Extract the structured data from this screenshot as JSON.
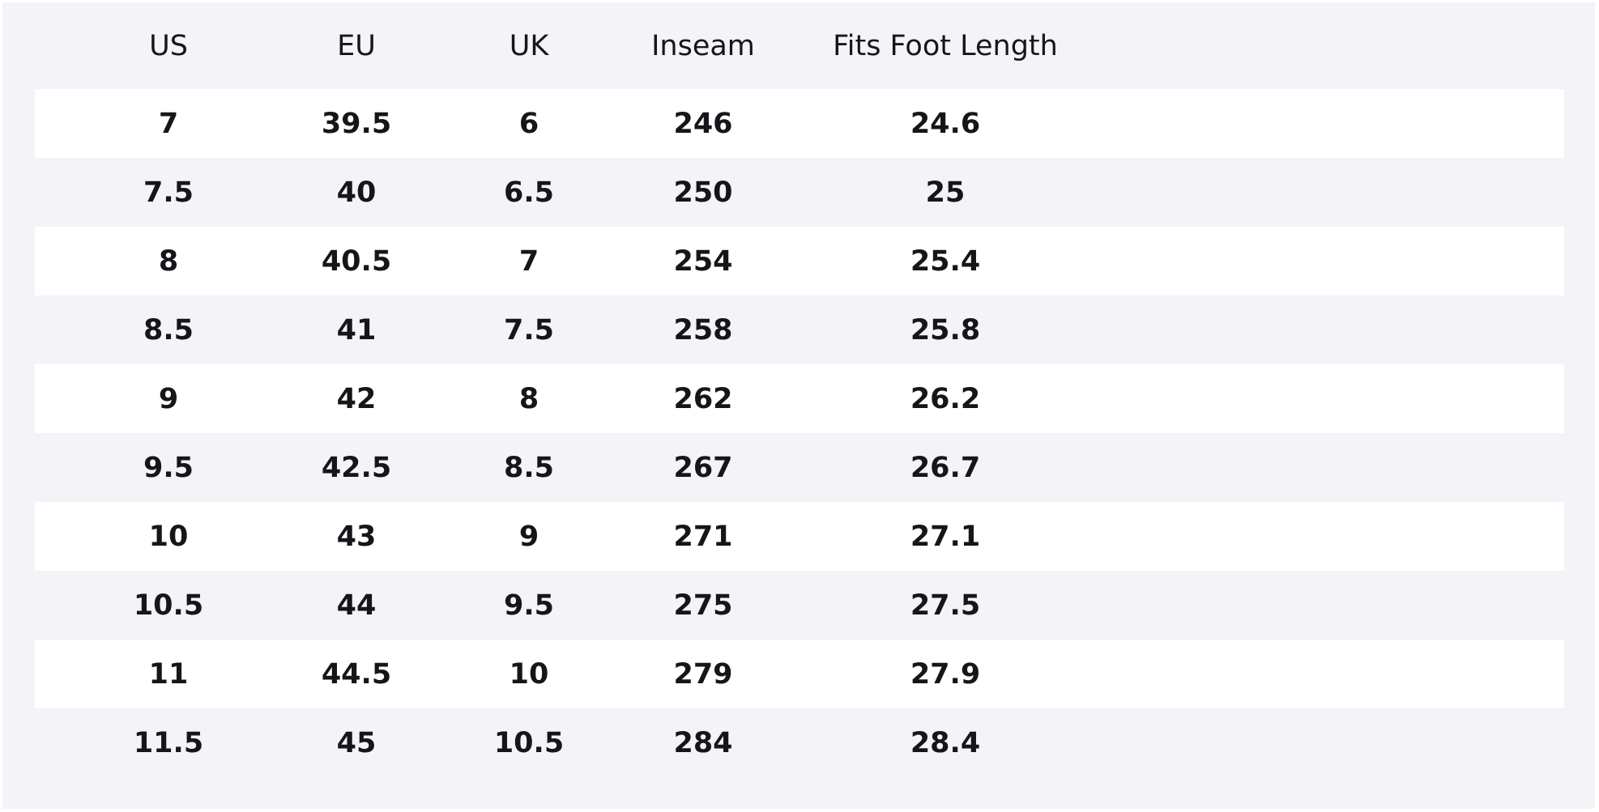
{
  "table": {
    "header": [
      "US",
      "EU",
      "UK",
      "Inseam",
      "Fits Foot Length"
    ],
    "rows": [
      [
        7,
        39.5,
        6,
        246,
        24.6
      ],
      [
        7.5,
        40,
        6.5,
        250,
        25
      ],
      [
        8,
        40.5,
        7,
        254,
        25.4
      ],
      [
        8.5,
        41,
        7.5,
        258,
        25.8
      ],
      [
        9,
        42,
        8,
        262,
        26.2
      ],
      [
        9.5,
        42.5,
        8.5,
        267,
        26.7
      ],
      [
        10,
        43,
        9,
        271,
        27.1
      ],
      [
        10.5,
        44,
        9.5,
        275,
        27.5
      ],
      [
        11,
        44.5,
        10,
        279,
        27.9
      ],
      [
        11.5,
        45,
        10.5,
        284,
        28.4
      ]
    ]
  }
}
